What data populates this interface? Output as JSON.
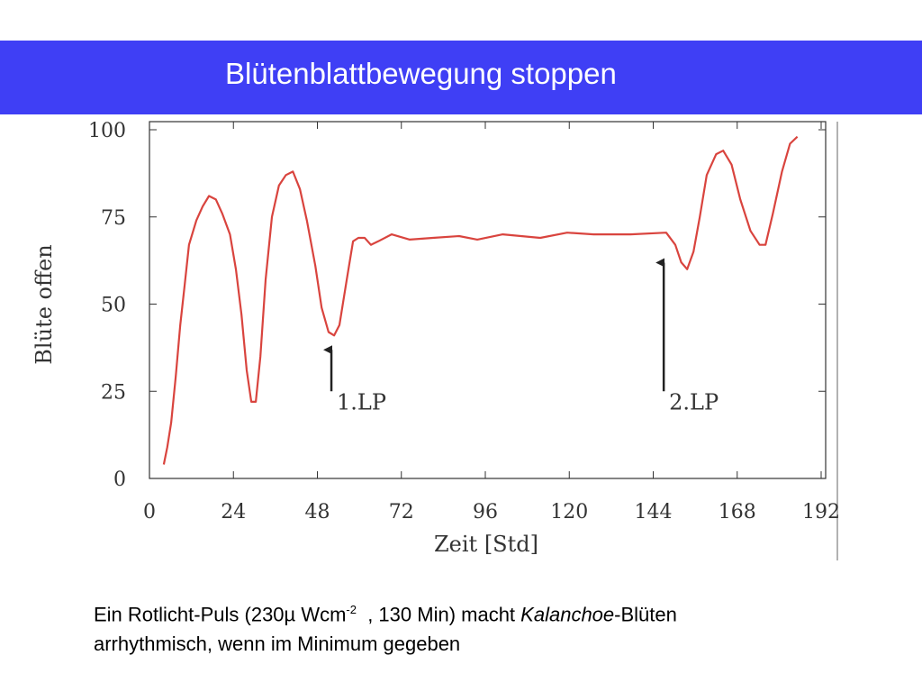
{
  "title": "Blütenblattbewegung stoppen",
  "chart_data": {
    "type": "line",
    "xlabel": "Zeit [Std]",
    "ylabel": "Blüte offen",
    "xlim": [
      0,
      192
    ],
    "xticks": [
      0,
      24,
      48,
      72,
      96,
      120,
      144,
      168,
      192
    ],
    "ylim": [
      0,
      100
    ],
    "yticks": [
      0,
      25,
      50,
      75,
      100
    ],
    "grid": false,
    "series": [
      {
        "name": "Blüte offen",
        "color": "#d9443e",
        "x": [
          4.1,
          5.1,
          6.2,
          7.5,
          8.8,
          10,
          11.3,
          13.4,
          15.2,
          17,
          19,
          20.8,
          23,
          24.7,
          26.3,
          27.8,
          29.1,
          30.4,
          31.7,
          33.2,
          35,
          37,
          39,
          41,
          43,
          45,
          47.4,
          49.2,
          51.2,
          52.8,
          54.3,
          56.4,
          58.2,
          59.7,
          61.5,
          63.3,
          65.4,
          69.2,
          74.4,
          81,
          88.5,
          93.7,
          101,
          111.7,
          119.4,
          127,
          137.5,
          147.7,
          150.3,
          152,
          153.7,
          155.5,
          157.3,
          159.3,
          162,
          164,
          166.4,
          168.9,
          171.8,
          174.4,
          176.1,
          178.2,
          180.8,
          183.1,
          185.2
        ],
        "values": [
          4,
          9,
          16,
          29,
          44,
          55,
          67,
          74,
          78,
          81,
          80,
          76,
          70,
          60,
          47,
          31,
          22,
          22,
          35,
          57,
          75,
          84,
          87,
          88,
          83,
          74,
          61,
          49,
          42,
          41,
          44,
          57,
          68,
          69,
          69,
          67,
          68,
          70,
          68.5,
          69,
          69.5,
          68.5,
          70,
          69,
          70.5,
          70,
          70,
          70.5,
          67,
          62,
          60,
          65,
          75,
          87,
          93,
          94,
          90,
          80,
          71,
          67,
          67,
          76,
          88,
          96,
          98
        ]
      }
    ],
    "annotations": [
      {
        "text": "1.LP",
        "x": 52,
        "y_start": 25,
        "y_end": 40
      },
      {
        "text": "2.LP",
        "x": 147,
        "y_start": 25,
        "y_end": 65
      }
    ]
  },
  "caption": {
    "parts": [
      "Ein Rotlicht-Puls (230µ Wcm",
      "-2",
      "  , 130 Min) macht ",
      "Kalanchoe",
      "-Blüten",
      "arrhythmisch, wenn im Minimum gegeben"
    ]
  }
}
